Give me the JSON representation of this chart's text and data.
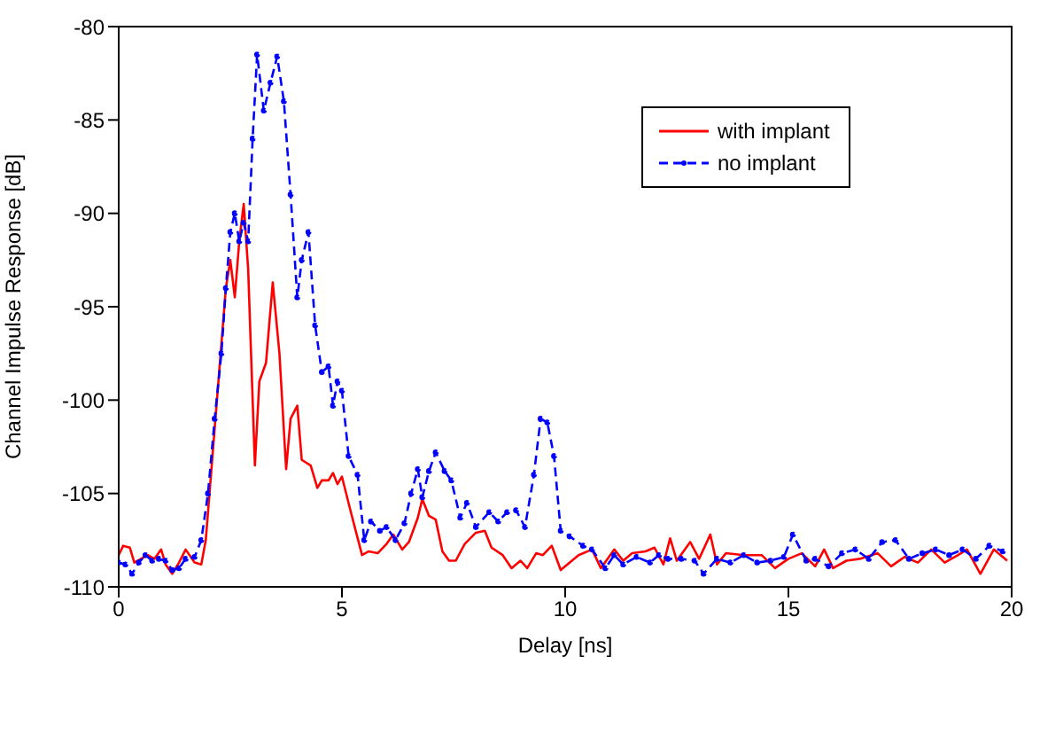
{
  "chart_data": {
    "type": "line",
    "xlabel": "Delay [ns]",
    "ylabel": "Channel Impulse Response [dB]",
    "xlim": [
      0,
      20
    ],
    "xticks": [
      0,
      5,
      10,
      15,
      20
    ],
    "ylim": [
      -110,
      -80
    ],
    "yticks": [
      -110,
      -105,
      -100,
      -95,
      -90,
      -85,
      -80
    ],
    "grid": false,
    "legend": "top right",
    "series": [
      {
        "name": "with implant",
        "color": "#ff0000",
        "line_style": "solid",
        "marker": "none",
        "x": [
          0,
          0.1,
          0.25,
          0.35,
          0.5,
          0.65,
          0.8,
          0.95,
          1.05,
          1.2,
          1.35,
          1.5,
          1.7,
          1.85,
          1.95,
          2.1,
          2.3,
          2.4,
          2.5,
          2.6,
          2.7,
          2.8,
          2.9,
          3.05,
          3.15,
          3.3,
          3.45,
          3.6,
          3.75,
          3.85,
          4.0,
          4.1,
          4.3,
          4.45,
          4.55,
          4.7,
          4.8,
          4.9,
          5.0,
          5.2,
          5.45,
          5.6,
          5.8,
          6.0,
          6.15,
          6.35,
          6.5,
          6.7,
          6.8,
          6.95,
          7.1,
          7.25,
          7.4,
          7.55,
          7.75,
          8.0,
          8.2,
          8.35,
          8.6,
          8.8,
          9.0,
          9.15,
          9.35,
          9.5,
          9.7,
          9.9,
          10.3,
          10.6,
          10.8,
          11.1,
          11.3,
          11.5,
          11.8,
          12.0,
          12.2,
          12.35,
          12.5,
          12.8,
          13.0,
          13.25,
          13.4,
          13.6,
          14.0,
          14.4,
          14.7,
          15.0,
          15.3,
          15.6,
          15.8,
          16.0,
          16.3,
          16.6,
          17.0,
          17.3,
          17.6,
          17.9,
          18.2,
          18.5,
          18.8,
          19.0,
          19.3,
          19.6,
          19.9
        ],
        "values": [
          -108.3,
          -107.8,
          -107.9,
          -108.7,
          -108.5,
          -108.3,
          -108.5,
          -108.0,
          -108.8,
          -109.3,
          -108.7,
          -108.0,
          -108.7,
          -108.8,
          -107.5,
          -103,
          -97,
          -94,
          -92.5,
          -94.5,
          -91.5,
          -89.5,
          -93,
          -103.5,
          -99,
          -98,
          -93.7,
          -97.5,
          -103.7,
          -101,
          -100.3,
          -103.2,
          -103.5,
          -104.7,
          -104.3,
          -104.3,
          -103.9,
          -104.5,
          -104.1,
          -106,
          -108.3,
          -108.1,
          -108.2,
          -107.7,
          -107.2,
          -108.0,
          -107.6,
          -106.3,
          -105.3,
          -106.2,
          -106.4,
          -108.1,
          -108.6,
          -108.6,
          -107.7,
          -107.1,
          -107.0,
          -107.9,
          -108.3,
          -109.0,
          -108.6,
          -109.0,
          -108.2,
          -108.3,
          -107.8,
          -109.1,
          -108.3,
          -108.0,
          -109.0,
          -108.0,
          -108.6,
          -108.2,
          -108.1,
          -107.9,
          -108.8,
          -107.4,
          -108.6,
          -107.6,
          -108.5,
          -107.2,
          -108.8,
          -108.2,
          -108.3,
          -108.3,
          -109.0,
          -108.5,
          -108.2,
          -108.9,
          -108.0,
          -109.0,
          -108.6,
          -108.5,
          -108.2,
          -108.9,
          -108.4,
          -108.7,
          -108.0,
          -108.7,
          -108.3,
          -108.0,
          -109.3,
          -108.0,
          -108.6
        ]
      },
      {
        "name": "no implant",
        "color": "#0000ff",
        "line_style": "dashed",
        "marker": "circle",
        "x": [
          0,
          0.15,
          0.3,
          0.45,
          0.6,
          0.75,
          0.9,
          1.05,
          1.2,
          1.35,
          1.5,
          1.7,
          1.85,
          2.0,
          2.15,
          2.3,
          2.4,
          2.5,
          2.6,
          2.7,
          2.8,
          2.9,
          3.0,
          3.1,
          3.25,
          3.4,
          3.55,
          3.7,
          3.85,
          4.0,
          4.1,
          4.25,
          4.4,
          4.55,
          4.7,
          4.8,
          4.9,
          5.0,
          5.15,
          5.35,
          5.5,
          5.65,
          5.85,
          6.0,
          6.2,
          6.4,
          6.55,
          6.7,
          6.8,
          6.95,
          7.1,
          7.3,
          7.45,
          7.65,
          7.8,
          8.0,
          8.3,
          8.5,
          8.7,
          8.9,
          9.1,
          9.3,
          9.45,
          9.6,
          9.75,
          9.9,
          10.1,
          10.4,
          10.6,
          10.9,
          11.1,
          11.3,
          11.6,
          11.9,
          12.1,
          12.3,
          12.6,
          12.9,
          13.1,
          13.4,
          13.7,
          14.0,
          14.3,
          14.6,
          14.9,
          15.1,
          15.4,
          15.6,
          15.9,
          16.2,
          16.5,
          16.8,
          17.1,
          17.4,
          17.7,
          18.0,
          18.3,
          18.6,
          18.9,
          19.2,
          19.5,
          19.8
        ],
        "values": [
          -108.7,
          -108.8,
          -109.3,
          -108.7,
          -108.3,
          -108.6,
          -108.5,
          -108.6,
          -109.1,
          -109.0,
          -108.5,
          -108.4,
          -107.5,
          -105,
          -101,
          -97.5,
          -94,
          -91,
          -90.0,
          -91.5,
          -90.5,
          -91.5,
          -86,
          -81.5,
          -84.5,
          -83,
          -81.6,
          -84,
          -89,
          -94.5,
          -92.5,
          -91.0,
          -96,
          -98.5,
          -98.2,
          -100.3,
          -99,
          -99.5,
          -103,
          -104,
          -107.5,
          -106.5,
          -107.0,
          -106.8,
          -107.5,
          -106.6,
          -105,
          -103.7,
          -105.2,
          -103.8,
          -102.8,
          -103.8,
          -104.3,
          -106.3,
          -105.5,
          -106.8,
          -106.0,
          -106.5,
          -106.0,
          -105.9,
          -106.8,
          -104.0,
          -101.0,
          -101.2,
          -103,
          -107.0,
          -107.3,
          -107.8,
          -108.0,
          -109.0,
          -108.3,
          -108.8,
          -108.4,
          -108.7,
          -108.3,
          -108.5,
          -108.5,
          -108.6,
          -109.3,
          -108.5,
          -108.7,
          -108.3,
          -108.7,
          -108.6,
          -108.4,
          -107.2,
          -108.6,
          -108.5,
          -108.9,
          -108.2,
          -108.0,
          -108.5,
          -107.6,
          -107.5,
          -108.5,
          -108.2,
          -108.0,
          -108.3,
          -108.0,
          -108.5,
          -107.8,
          -108.1
        ]
      }
    ]
  }
}
